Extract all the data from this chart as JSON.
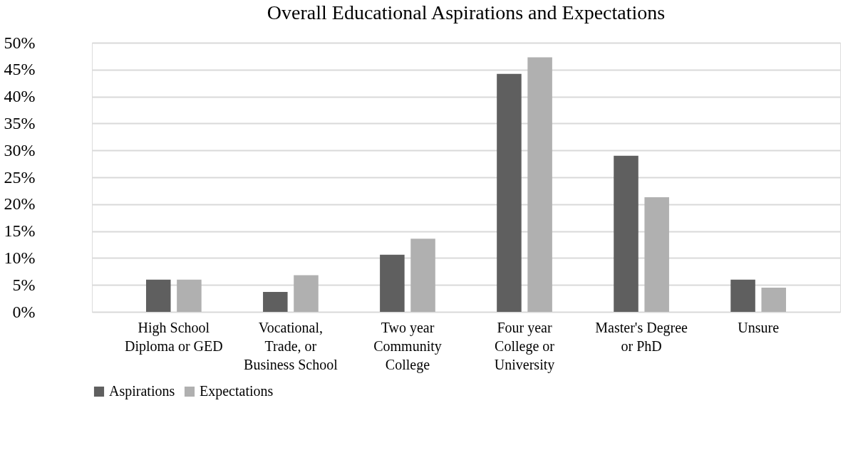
{
  "chart_data": {
    "type": "bar",
    "title": "Overall Educational Aspirations and Expectations",
    "categories": [
      "High School Diploma or GED",
      "Vocational, Trade, or Business School",
      "Two year Community College",
      "Four year College or University",
      "Master's Degree or PhD",
      "Unsure"
    ],
    "series": [
      {
        "name": "Aspirations",
        "color": "#5f5f5f",
        "values": [
          6.0,
          3.7,
          10.6,
          44.2,
          29.0,
          6.0
        ]
      },
      {
        "name": "Expectations",
        "color": "#b0b0b0",
        "values": [
          6.0,
          6.8,
          13.6,
          47.3,
          21.3,
          4.5
        ]
      }
    ],
    "ylim": [
      0,
      50
    ],
    "yticks": [
      {
        "value": 0,
        "label": "0%"
      },
      {
        "value": 5,
        "label": "5%"
      },
      {
        "value": 10,
        "label": "10%"
      },
      {
        "value": 15,
        "label": "15%"
      },
      {
        "value": 20,
        "label": "20%"
      },
      {
        "value": 25,
        "label": "25%"
      },
      {
        "value": 30,
        "label": "30%"
      },
      {
        "value": 35,
        "label": "35%"
      },
      {
        "value": 40,
        "label": "40%"
      },
      {
        "value": 45,
        "label": "45%"
      },
      {
        "value": 50,
        "label": "50%"
      }
    ],
    "grid": "y",
    "legend": "bottom"
  }
}
